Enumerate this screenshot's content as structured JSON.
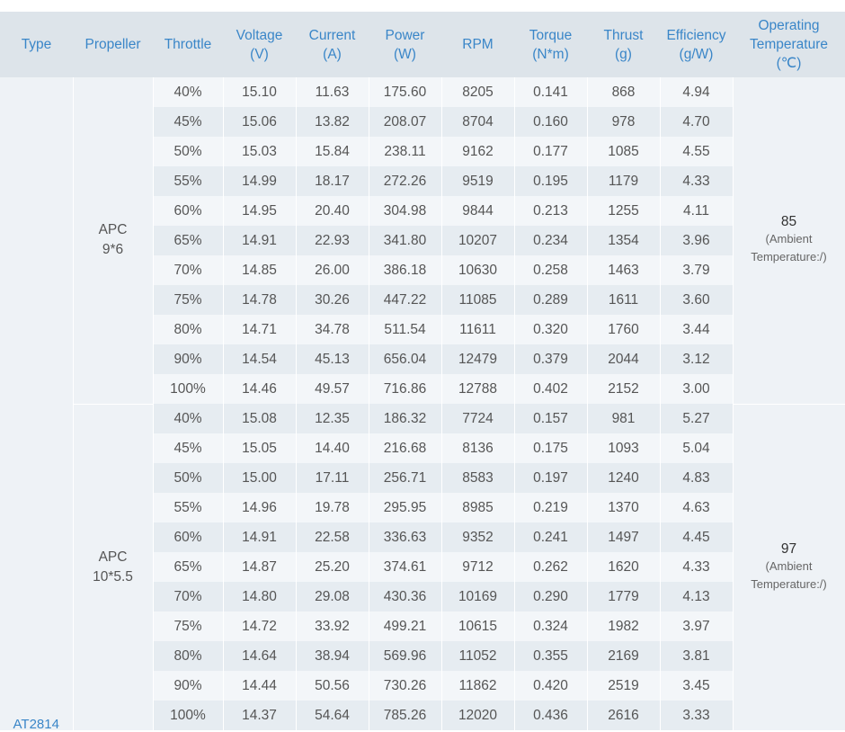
{
  "headers": [
    [
      "Type"
    ],
    [
      "Propeller"
    ],
    [
      "Throttle"
    ],
    [
      "Voltage",
      "(V)"
    ],
    [
      "Current",
      "(A)"
    ],
    [
      "Power",
      "(W)"
    ],
    [
      "RPM"
    ],
    [
      "Torque",
      "(N*m)"
    ],
    [
      "Thrust",
      "(g)"
    ],
    [
      "Efficiency",
      "(g/W)"
    ],
    [
      "Operating",
      "Temperature",
      "(℃)"
    ]
  ],
  "type_label": "AT2814",
  "groups": [
    {
      "propeller": [
        "APC",
        "9*6"
      ],
      "temperature": "85",
      "ambient": [
        "(Ambient",
        "Temperature:/)"
      ],
      "rows": [
        [
          "40%",
          "15.10",
          "11.63",
          "175.60",
          "8205",
          "0.141",
          "868",
          "4.94"
        ],
        [
          "45%",
          "15.06",
          "13.82",
          "208.07",
          "8704",
          "0.160",
          "978",
          "4.70"
        ],
        [
          "50%",
          "15.03",
          "15.84",
          "238.11",
          "9162",
          "0.177",
          "1085",
          "4.55"
        ],
        [
          "55%",
          "14.99",
          "18.17",
          "272.26",
          "9519",
          "0.195",
          "1179",
          "4.33"
        ],
        [
          "60%",
          "14.95",
          "20.40",
          "304.98",
          "9844",
          "0.213",
          "1255",
          "4.11"
        ],
        [
          "65%",
          "14.91",
          "22.93",
          "341.80",
          "10207",
          "0.234",
          "1354",
          "3.96"
        ],
        [
          "70%",
          "14.85",
          "26.00",
          "386.18",
          "10630",
          "0.258",
          "1463",
          "3.79"
        ],
        [
          "75%",
          "14.78",
          "30.26",
          "447.22",
          "11085",
          "0.289",
          "1611",
          "3.60"
        ],
        [
          "80%",
          "14.71",
          "34.78",
          "511.54",
          "11611",
          "0.320",
          "1760",
          "3.44"
        ],
        [
          "90%",
          "14.54",
          "45.13",
          "656.04",
          "12479",
          "0.379",
          "2044",
          "3.12"
        ],
        [
          "100%",
          "14.46",
          "49.57",
          "716.86",
          "12788",
          "0.402",
          "2152",
          "3.00"
        ]
      ]
    },
    {
      "propeller": [
        "APC",
        "10*5.5"
      ],
      "temperature": "97",
      "ambient": [
        "(Ambient",
        "Temperature:/)"
      ],
      "rows": [
        [
          "40%",
          "15.08",
          "12.35",
          "186.32",
          "7724",
          "0.157",
          "981",
          "5.27"
        ],
        [
          "45%",
          "15.05",
          "14.40",
          "216.68",
          "8136",
          "0.175",
          "1093",
          "5.04"
        ],
        [
          "50%",
          "15.00",
          "17.11",
          "256.71",
          "8583",
          "0.197",
          "1240",
          "4.83"
        ],
        [
          "55%",
          "14.96",
          "19.78",
          "295.95",
          "8985",
          "0.219",
          "1370",
          "4.63"
        ],
        [
          "60%",
          "14.91",
          "22.58",
          "336.63",
          "9352",
          "0.241",
          "1497",
          "4.45"
        ],
        [
          "65%",
          "14.87",
          "25.20",
          "374.61",
          "9712",
          "0.262",
          "1620",
          "4.33"
        ],
        [
          "70%",
          "14.80",
          "29.08",
          "430.36",
          "10169",
          "0.290",
          "1779",
          "4.13"
        ],
        [
          "75%",
          "14.72",
          "33.92",
          "499.21",
          "10615",
          "0.324",
          "1982",
          "3.97"
        ],
        [
          "80%",
          "14.64",
          "38.94",
          "569.96",
          "11052",
          "0.355",
          "2169",
          "3.81"
        ],
        [
          "90%",
          "14.44",
          "50.56",
          "730.26",
          "11862",
          "0.420",
          "2519",
          "3.45"
        ],
        [
          "100%",
          "14.37",
          "54.64",
          "785.26",
          "12020",
          "0.436",
          "2616",
          "3.33"
        ]
      ]
    }
  ]
}
